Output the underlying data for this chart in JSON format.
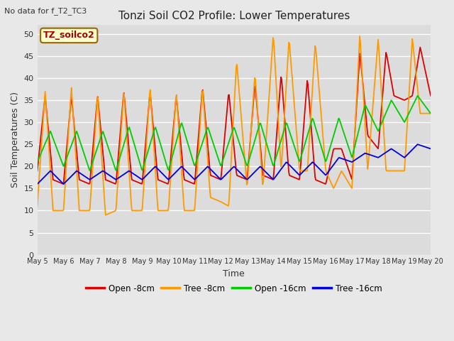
{
  "title": "Tonzi Soil CO2 Profile: Lower Temperatures",
  "subtitle": "No data for f_T2_TC3",
  "xlabel": "Time",
  "ylabel": "Soil Temperatures (C)",
  "legend_label": "TZ_soilco2",
  "ylim": [
    0,
    52
  ],
  "yticks": [
    0,
    5,
    10,
    15,
    20,
    25,
    30,
    35,
    40,
    45,
    50
  ],
  "x_labels": [
    "May 5",
    "May 6",
    "May 7",
    "May 8",
    "May 9",
    "May 10",
    "May 11",
    "May 12",
    "May 13",
    "May 14",
    "May 15",
    "May 16",
    "May 17",
    "May 18",
    "May 19",
    "May 20"
  ],
  "fig_bg": "#e8e8e8",
  "plot_bg": "#dcdcdc",
  "grid_color": "#ffffff",
  "series": {
    "open_8cm": {
      "color": "#dd0000",
      "label": "Open -8cm"
    },
    "tree_8cm": {
      "color": "#ff9900",
      "label": "Tree -8cm"
    },
    "open_16cm": {
      "color": "#00cc00",
      "label": "Open -16cm"
    },
    "tree_16cm": {
      "color": "#0000dd",
      "label": "Tree -16cm"
    }
  }
}
